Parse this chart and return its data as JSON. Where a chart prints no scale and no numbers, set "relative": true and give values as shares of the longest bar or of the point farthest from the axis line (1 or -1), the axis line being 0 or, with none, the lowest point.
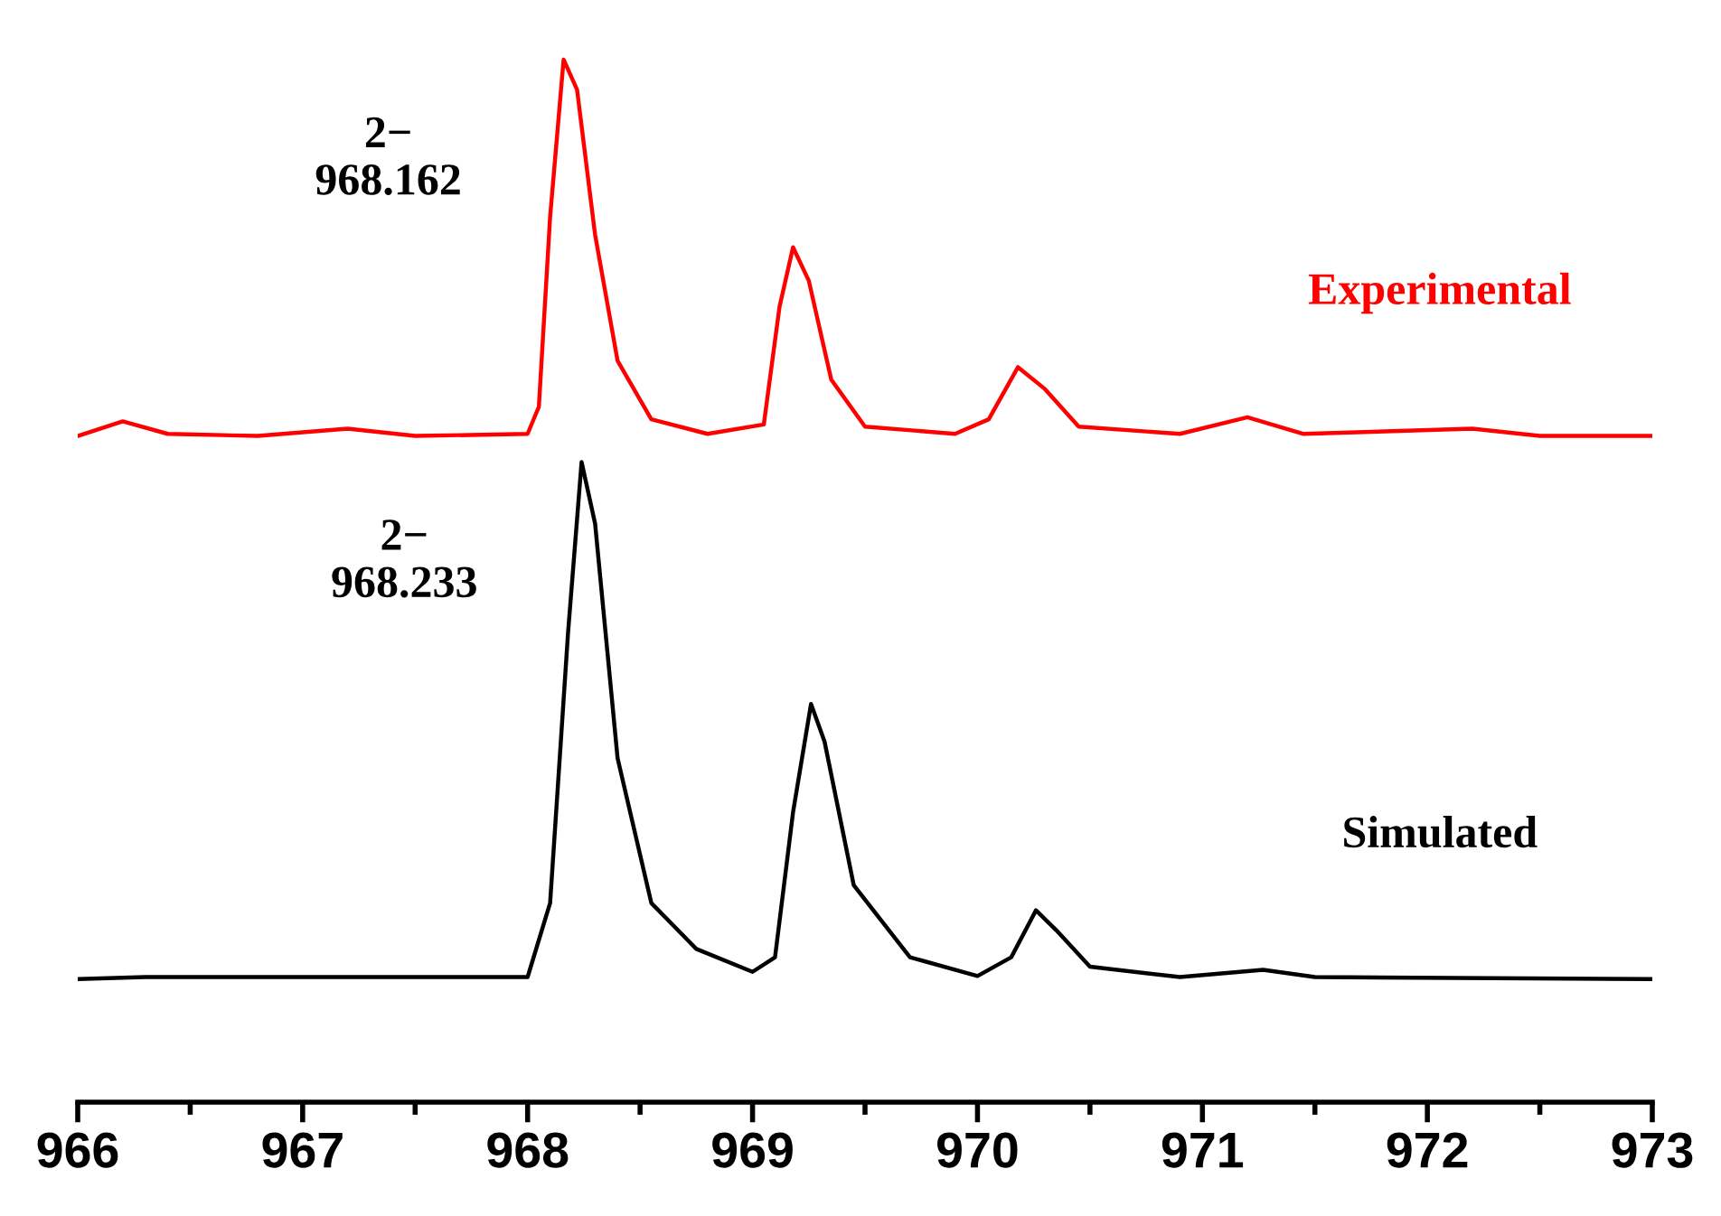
{
  "chart_data": {
    "type": "line",
    "relative": true,
    "xlim": [
      966,
      973
    ],
    "xticks": [
      966,
      967,
      968,
      969,
      970,
      971,
      972,
      973
    ],
    "tick_labels": "x",
    "grid": false,
    "legend": false,
    "marker": "none",
    "line_style": "solid",
    "annotations": [
      {
        "text": "2−\n968.162",
        "x": 968.162,
        "y": 1.0
      },
      {
        "text": "2−\n968.233",
        "x": 968.233,
        "y": 0.614
      }
    ],
    "series": [
      {
        "name": "Experimental",
        "color": "#ff0000",
        "x": [
          966.0,
          966.2,
          966.4,
          966.8,
          967.2,
          967.5,
          968.0,
          968.05,
          968.1,
          968.16,
          968.22,
          968.3,
          968.4,
          968.55,
          968.8,
          969.05,
          969.12,
          969.18,
          969.25,
          969.35,
          969.5,
          969.9,
          970.05,
          970.18,
          970.3,
          970.45,
          970.9,
          971.2,
          971.45,
          972.2,
          972.5,
          973.0
        ],
        "values": [
          0.639,
          0.653,
          0.641,
          0.639,
          0.646,
          0.639,
          0.641,
          0.667,
          0.849,
          1.0,
          0.971,
          0.832,
          0.711,
          0.655,
          0.641,
          0.65,
          0.763,
          0.82,
          0.788,
          0.693,
          0.648,
          0.641,
          0.655,
          0.705,
          0.684,
          0.648,
          0.641,
          0.657,
          0.641,
          0.646,
          0.639,
          0.639
        ]
      },
      {
        "name": "Simulated",
        "color": "#000000",
        "x": [
          966.0,
          966.3,
          967.2,
          968.0,
          968.1,
          968.18,
          968.24,
          968.3,
          968.4,
          968.55,
          968.75,
          969.0,
          969.1,
          969.18,
          969.26,
          969.32,
          969.45,
          969.7,
          970.0,
          970.15,
          970.26,
          970.35,
          970.5,
          970.9,
          971.27,
          971.5,
          973.0
        ],
        "values": [
          0.118,
          0.12,
          0.12,
          0.12,
          0.191,
          0.451,
          0.614,
          0.555,
          0.33,
          0.191,
          0.147,
          0.125,
          0.139,
          0.278,
          0.382,
          0.346,
          0.208,
          0.139,
          0.121,
          0.139,
          0.184,
          0.165,
          0.13,
          0.12,
          0.127,
          0.12,
          0.118
        ]
      }
    ]
  }
}
